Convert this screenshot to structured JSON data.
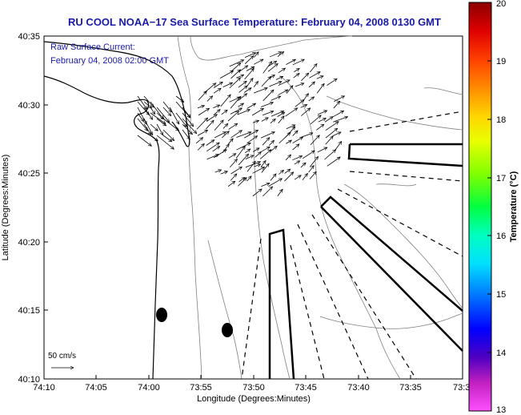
{
  "map": {
    "title": "RU COOL  NOAA−17  Sea Surface Temperature:  February 04, 2008 0130 GMT",
    "current_label_line1": "Raw Surface Current:",
    "current_label_line2": "February 04, 2008 02:00 GMT",
    "x_axis_label": "Longitude (Degrees:Minutes)",
    "y_axis_label": "Latitude (Degrees:Minutes)",
    "x_ticks": [
      "74:10",
      "74:05",
      "74:00",
      "73:55",
      "73:50",
      "73:45",
      "73:40",
      "73:35",
      "73:3"
    ],
    "y_ticks": [
      "40:35",
      "40:30",
      "40:25",
      "40:20",
      "40:15",
      "40:10"
    ],
    "scale_label": "50 cm/s",
    "coastline_color": "#000000",
    "contour_color": "#808080",
    "vector_color": "#000000"
  },
  "colorbar": {
    "label": "Temperature (°C)",
    "ticks": [
      "20",
      "19",
      "18",
      "17",
      "16",
      "15",
      "14",
      "13"
    ],
    "min": 13,
    "max": 20,
    "colors_top_to_bottom": [
      "#8b0000",
      "#e00000",
      "#ff4000",
      "#ff8c00",
      "#ffd700",
      "#e8ff00",
      "#80ff00",
      "#00ff40",
      "#00ffc0",
      "#00e0ff",
      "#0080ff",
      "#0000ff",
      "#5000c0",
      "#c020c0",
      "#ff50ff"
    ]
  }
}
